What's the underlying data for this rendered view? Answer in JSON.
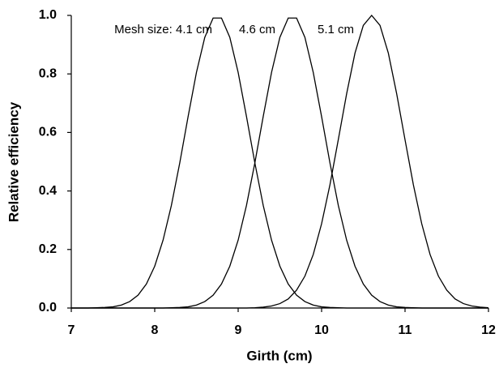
{
  "chart_data": {
    "type": "line",
    "x": [
      7,
      7.1,
      7.2,
      7.3,
      7.4,
      7.5,
      7.6,
      7.7,
      7.8,
      7.9,
      8,
      8.1,
      8.2,
      8.3,
      8.4,
      8.5,
      8.6,
      8.7,
      8.8,
      8.9,
      9,
      9.1,
      9.2,
      9.3,
      9.4,
      9.5,
      9.6,
      9.7,
      9.8,
      9.9,
      10,
      10.1,
      10.2,
      10.3,
      10.4,
      10.5,
      10.6,
      10.7,
      10.8,
      10.9,
      11,
      11.1,
      11.2,
      11.3,
      11.4,
      11.5,
      11.6,
      11.7,
      11.8,
      11.9,
      12
    ],
    "series": [
      {
        "name": "Mesh size: 4.1 cm",
        "color": "#000000",
        "values": [
          0,
          0,
          0,
          0.001,
          0.002,
          0.004,
          0.01,
          0.022,
          0.044,
          0.082,
          0.143,
          0.232,
          0.351,
          0.496,
          0.654,
          0.805,
          0.925,
          0.991,
          0.991,
          0.925,
          0.805,
          0.654,
          0.496,
          0.351,
          0.232,
          0.143,
          0.082,
          0.044,
          0.022,
          0.01,
          0.004,
          0.002,
          0.001,
          0,
          0,
          0,
          0,
          0,
          0,
          0,
          0,
          0,
          0,
          0,
          0,
          0,
          0,
          0,
          0,
          0,
          0
        ]
      },
      {
        "name": "4.6 cm",
        "color": "#000000",
        "values": [
          0,
          0,
          0,
          0,
          0,
          0,
          0,
          0,
          0,
          0,
          0,
          0,
          0.001,
          0.002,
          0.004,
          0.01,
          0.022,
          0.044,
          0.082,
          0.143,
          0.232,
          0.351,
          0.496,
          0.654,
          0.805,
          0.925,
          0.991,
          0.991,
          0.925,
          0.805,
          0.654,
          0.496,
          0.351,
          0.232,
          0.143,
          0.082,
          0.044,
          0.022,
          0.01,
          0.004,
          0.002,
          0.001,
          0,
          0,
          0,
          0,
          0,
          0,
          0,
          0,
          0
        ]
      },
      {
        "name": "5.1 cm",
        "color": "#000000",
        "values": [
          0,
          0,
          0,
          0,
          0,
          0,
          0,
          0,
          0,
          0,
          0,
          0,
          0,
          0,
          0,
          0,
          0,
          0,
          0,
          0,
          0,
          0,
          0.001,
          0.003,
          0.007,
          0.015,
          0.031,
          0.061,
          0.109,
          0.183,
          0.288,
          0.421,
          0.575,
          0.732,
          0.871,
          0.966,
          1,
          0.966,
          0.871,
          0.732,
          0.575,
          0.421,
          0.288,
          0.183,
          0.109,
          0.061,
          0.031,
          0.015,
          0.007,
          0.003,
          0.001
        ]
      }
    ],
    "x_label": "Girth (cm)",
    "y_label": "Relative efficiency",
    "xlim": [
      7,
      12
    ],
    "xticks": [
      7,
      8,
      9,
      10,
      11,
      12
    ],
    "ylim": [
      0,
      1
    ],
    "yticks": [
      {
        "value": 0,
        "label": "0.0"
      },
      0.2,
      0.4,
      0.6,
      0.8,
      {
        "value": 1,
        "label": "1.0"
      }
    ],
    "grid": false
  }
}
